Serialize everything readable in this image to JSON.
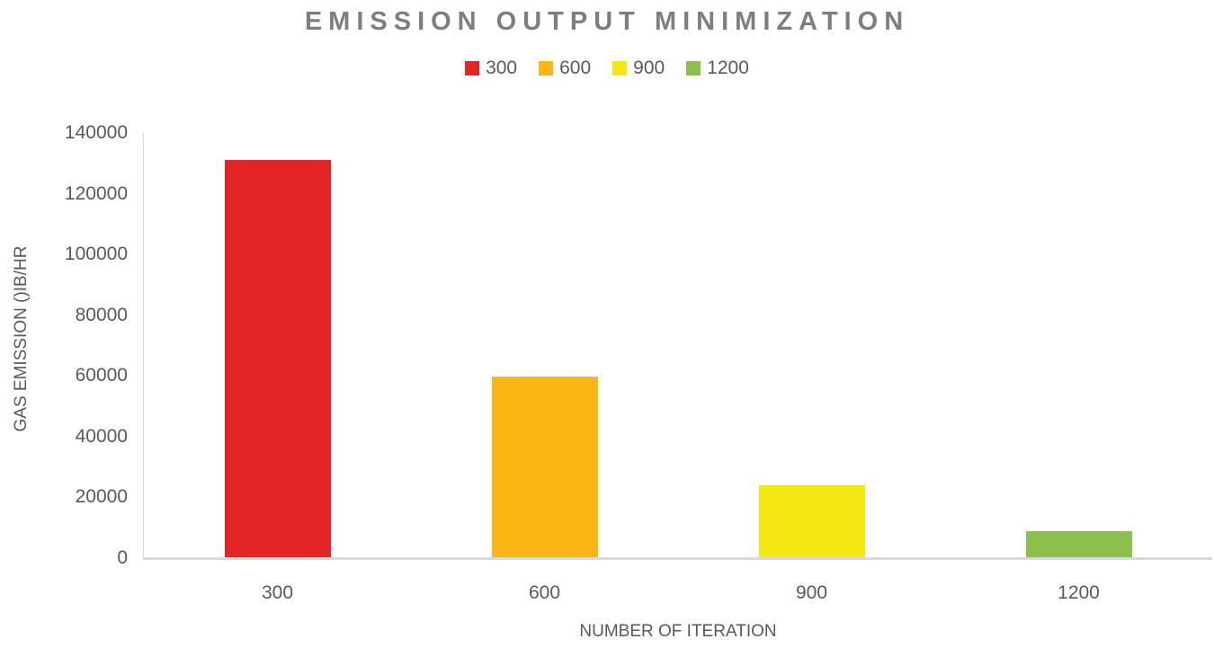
{
  "chart_data": {
    "type": "bar",
    "title": "EMISSION OUTPUT MINIMIZATION",
    "categories": [
      "300",
      "600",
      "900",
      "1200"
    ],
    "values": [
      131000,
      59800,
      24000,
      9000
    ],
    "bar_colors": [
      "#e32526",
      "#fcb615",
      "#f3e813",
      "#8dbf4c"
    ],
    "legend": [
      {
        "label": "300",
        "color": "#e32526"
      },
      {
        "label": "600",
        "color": "#fcb615"
      },
      {
        "label": "900",
        "color": "#f3e813"
      },
      {
        "label": "1200",
        "color": "#8dbf4c"
      }
    ],
    "xlabel": "NUMBER OF ITERATION",
    "ylabel": "GAS EMISSION ()IB/HR",
    "ylim": [
      0,
      140000
    ],
    "ytick_step": 20000,
    "ytick_labels": [
      "0",
      "20000",
      "40000",
      "60000",
      "80000",
      "100000",
      "120000",
      "140000"
    ],
    "grid": false,
    "legend_position": "top",
    "colors": {
      "title_text": "#7e7e7e",
      "axis_text": "#595959",
      "axis_line": "#d9d9d9",
      "background": "#ffffff"
    }
  }
}
